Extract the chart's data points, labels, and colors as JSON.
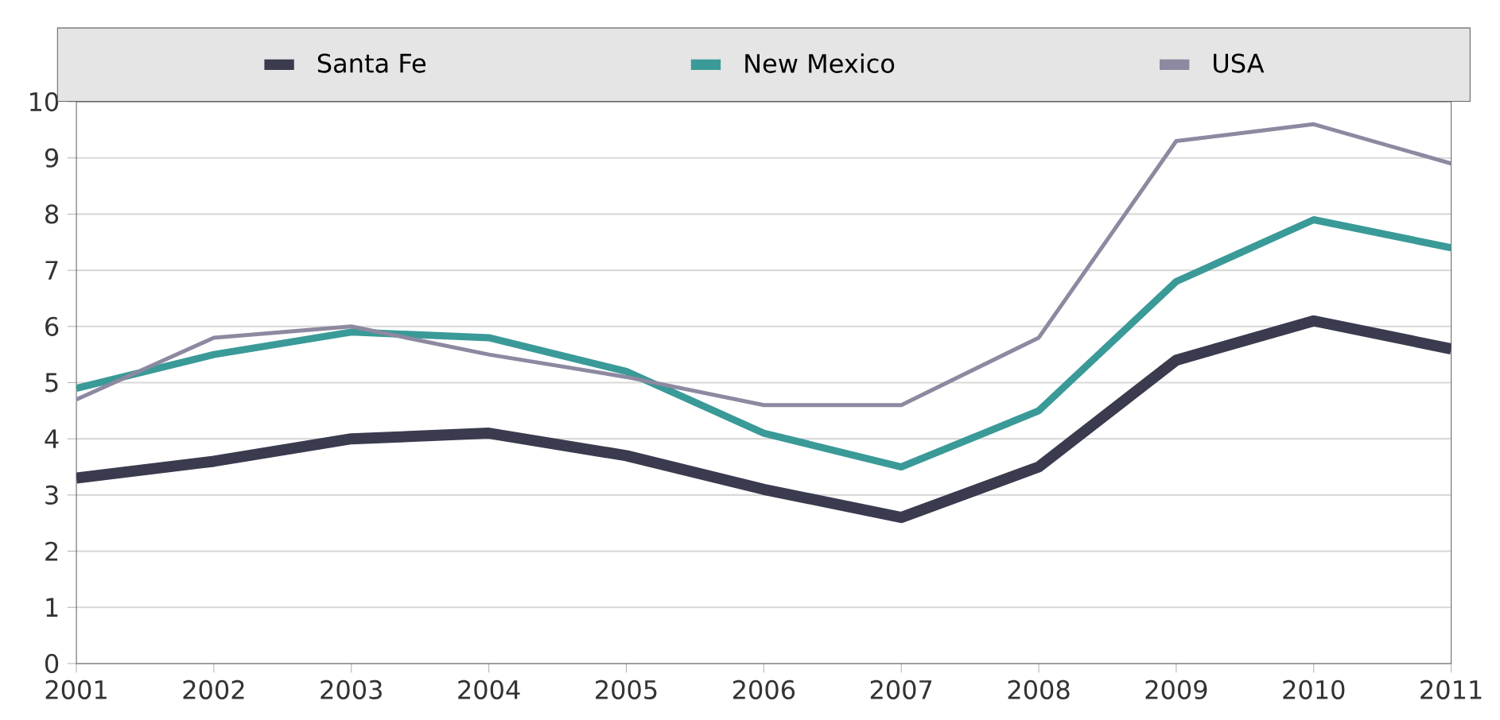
{
  "chart_data": {
    "type": "line",
    "x": [
      2001,
      2002,
      2003,
      2004,
      2005,
      2006,
      2007,
      2008,
      2009,
      2010,
      2011
    ],
    "xlim": [
      2001,
      2011
    ],
    "xticks": [
      2001,
      2002,
      2003,
      2004,
      2005,
      2006,
      2007,
      2008,
      2009,
      2010,
      2011
    ],
    "ylim": [
      0,
      10
    ],
    "yticks": [
      0,
      1,
      2,
      3,
      4,
      5,
      6,
      7,
      8,
      9,
      10
    ],
    "grid": "y",
    "legend": "top",
    "series": [
      {
        "name": "Santa Fe",
        "color": "#3b3b4f",
        "values": [
          3.3,
          3.6,
          4.0,
          4.1,
          3.7,
          3.1,
          2.6,
          3.5,
          5.4,
          6.1,
          5.6
        ]
      },
      {
        "name": "New Mexico",
        "color": "#3a9a98",
        "values": [
          4.9,
          5.5,
          5.9,
          5.8,
          5.2,
          4.1,
          3.5,
          4.5,
          6.8,
          7.9,
          7.4
        ]
      },
      {
        "name": "USA",
        "color": "#8c89a0",
        "values": [
          4.7,
          5.8,
          6.0,
          5.5,
          5.1,
          4.6,
          4.6,
          5.8,
          9.3,
          9.6,
          8.9
        ]
      }
    ]
  }
}
